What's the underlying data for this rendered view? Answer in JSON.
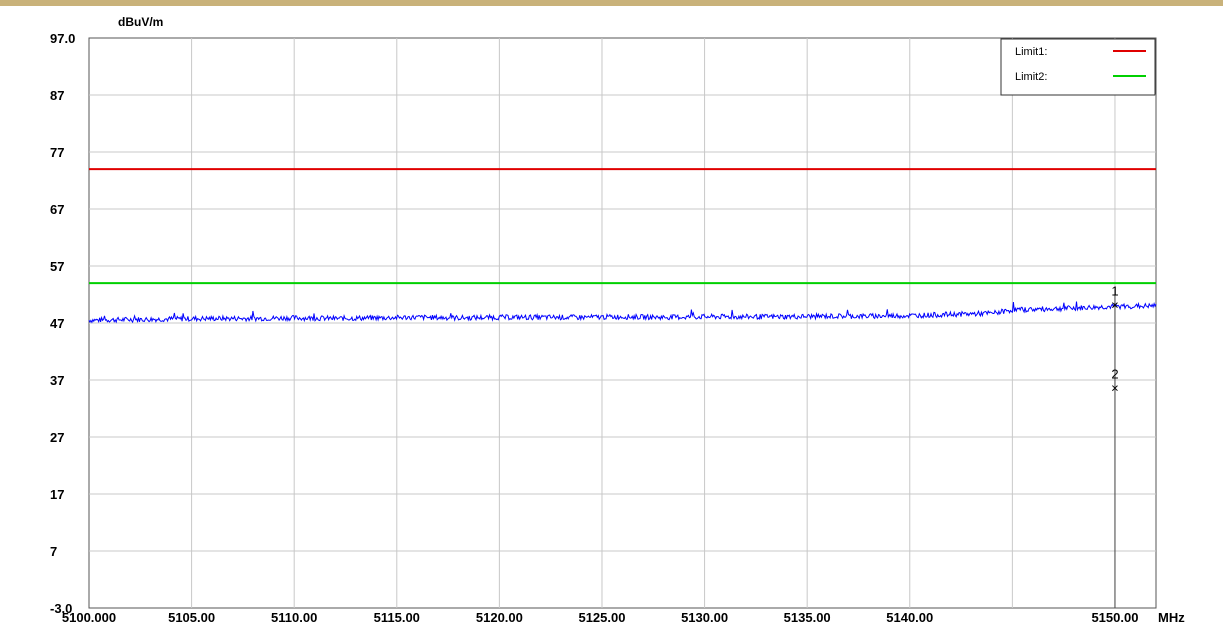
{
  "chart_data": {
    "type": "line",
    "title": "",
    "xlabel": "MHz",
    "ylabel": "dBuV/m",
    "xlim": [
      5100.0,
      5152.0
    ],
    "ylim": [
      -3.0,
      97.0
    ],
    "y_ticks": [
      "97.0",
      "87",
      "77",
      "67",
      "57",
      "47",
      "37",
      "27",
      "17",
      "7",
      "-3.0"
    ],
    "x_ticks": [
      {
        "value": 5100.0,
        "label": "5100.000"
      },
      {
        "value": 5105.0,
        "label": "5105.00"
      },
      {
        "value": 5110.0,
        "label": "5110.00"
      },
      {
        "value": 5115.0,
        "label": "5115.00"
      },
      {
        "value": 5120.0,
        "label": "5120.00"
      },
      {
        "value": 5125.0,
        "label": "5125.00"
      },
      {
        "value": 5130.0,
        "label": "5130.00"
      },
      {
        "value": 5135.0,
        "label": "5135.00"
      },
      {
        "value": 5140.0,
        "label": "5140.00"
      },
      {
        "value": 5150.0,
        "label": "5150.00"
      }
    ],
    "grid_x": [
      5105,
      5110,
      5115,
      5120,
      5125,
      5130,
      5135,
      5140,
      5145,
      5150
    ],
    "grid": true,
    "limits": [
      {
        "name": "Limit1:",
        "value": 74.0,
        "color": "#e00000"
      },
      {
        "name": "Limit2:",
        "value": 54.0,
        "color": "#00d000"
      }
    ],
    "legend_position": "top-right",
    "series": [
      {
        "color": "#0000ff",
        "x": [
          5100,
          5102,
          5104,
          5106,
          5108,
          5110,
          5112,
          5114,
          5116,
          5118,
          5120,
          5122,
          5124,
          5126,
          5128,
          5130,
          5132,
          5134,
          5136,
          5138,
          5140,
          5142,
          5144,
          5145,
          5146,
          5148,
          5150,
          5152
        ],
        "y": [
          47.5,
          47.6,
          47.7,
          47.8,
          47.8,
          47.9,
          47.8,
          47.9,
          48.0,
          47.9,
          48.0,
          48.0,
          48.0,
          48.1,
          48.0,
          48.1,
          48.1,
          48.1,
          48.2,
          48.2,
          48.3,
          48.5,
          48.7,
          49.3,
          49.4,
          49.6,
          49.9,
          50.0
        ]
      }
    ],
    "markers": [
      {
        "label": "1",
        "x": 5150.0,
        "y": 50.8
      },
      {
        "label": "2",
        "x": 5150.0,
        "y": 36.2
      }
    ]
  }
}
